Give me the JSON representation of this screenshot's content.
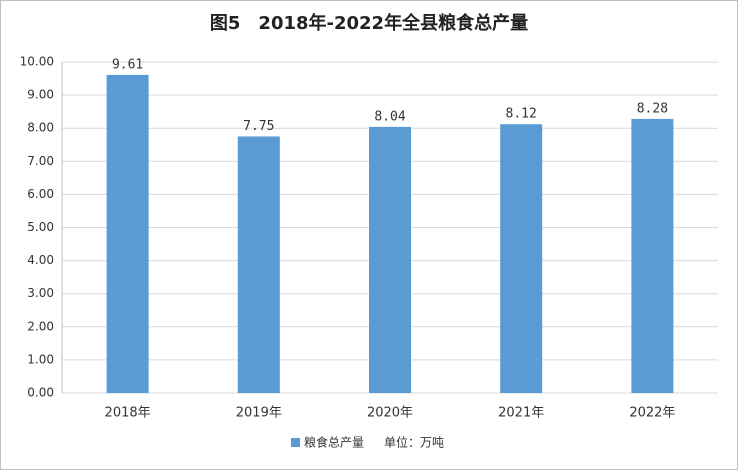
{
  "chart_data": {
    "type": "bar",
    "title": "图5　2018年-2022年全县粮食总产量",
    "categories": [
      "2018年",
      "2019年",
      "2020年",
      "2021年",
      "2022年"
    ],
    "series": [
      {
        "name": "粮食总产量",
        "color": "#5b9bd5",
        "values": [
          9.61,
          7.75,
          8.04,
          8.12,
          8.28
        ]
      }
    ],
    "annotation": "单位：万吨",
    "ylim": [
      0,
      10
    ],
    "yticks": [
      {
        "value": 0,
        "label": "0.00"
      },
      {
        "value": 1,
        "label": "1.00"
      },
      {
        "value": 2,
        "label": "2.00"
      },
      {
        "value": 3,
        "label": "3.00"
      },
      {
        "value": 4,
        "label": "4.00"
      },
      {
        "value": 5,
        "label": "5.00"
      },
      {
        "value": 6,
        "label": "6.00"
      },
      {
        "value": 7,
        "label": "7.00"
      },
      {
        "value": 8,
        "label": "8.00"
      },
      {
        "value": 9,
        "label": "9.00"
      },
      {
        "value": 10,
        "label": "10.00"
      }
    ],
    "grid": true
  }
}
